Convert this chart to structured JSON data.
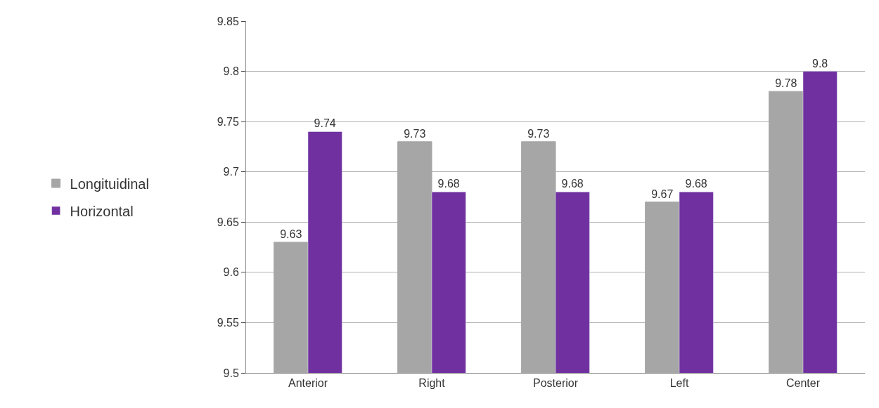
{
  "chart_data": {
    "type": "bar",
    "categories": [
      "Anterior",
      "Right",
      "Posterior",
      "Left",
      "Center"
    ],
    "series": [
      {
        "name": "Longituidinal",
        "color": "#a6a6a6",
        "values": [
          9.63,
          9.73,
          9.73,
          9.67,
          9.78
        ]
      },
      {
        "name": "Horizontal",
        "color": "#7030a0",
        "values": [
          9.74,
          9.68,
          9.68,
          9.68,
          9.8
        ]
      }
    ],
    "ylim": [
      9.5,
      9.85
    ],
    "yticks": [
      9.5,
      9.55,
      9.6,
      9.65,
      9.7,
      9.75,
      9.8,
      9.85
    ],
    "data_labels": true,
    "grid": "y",
    "legend": "left"
  }
}
